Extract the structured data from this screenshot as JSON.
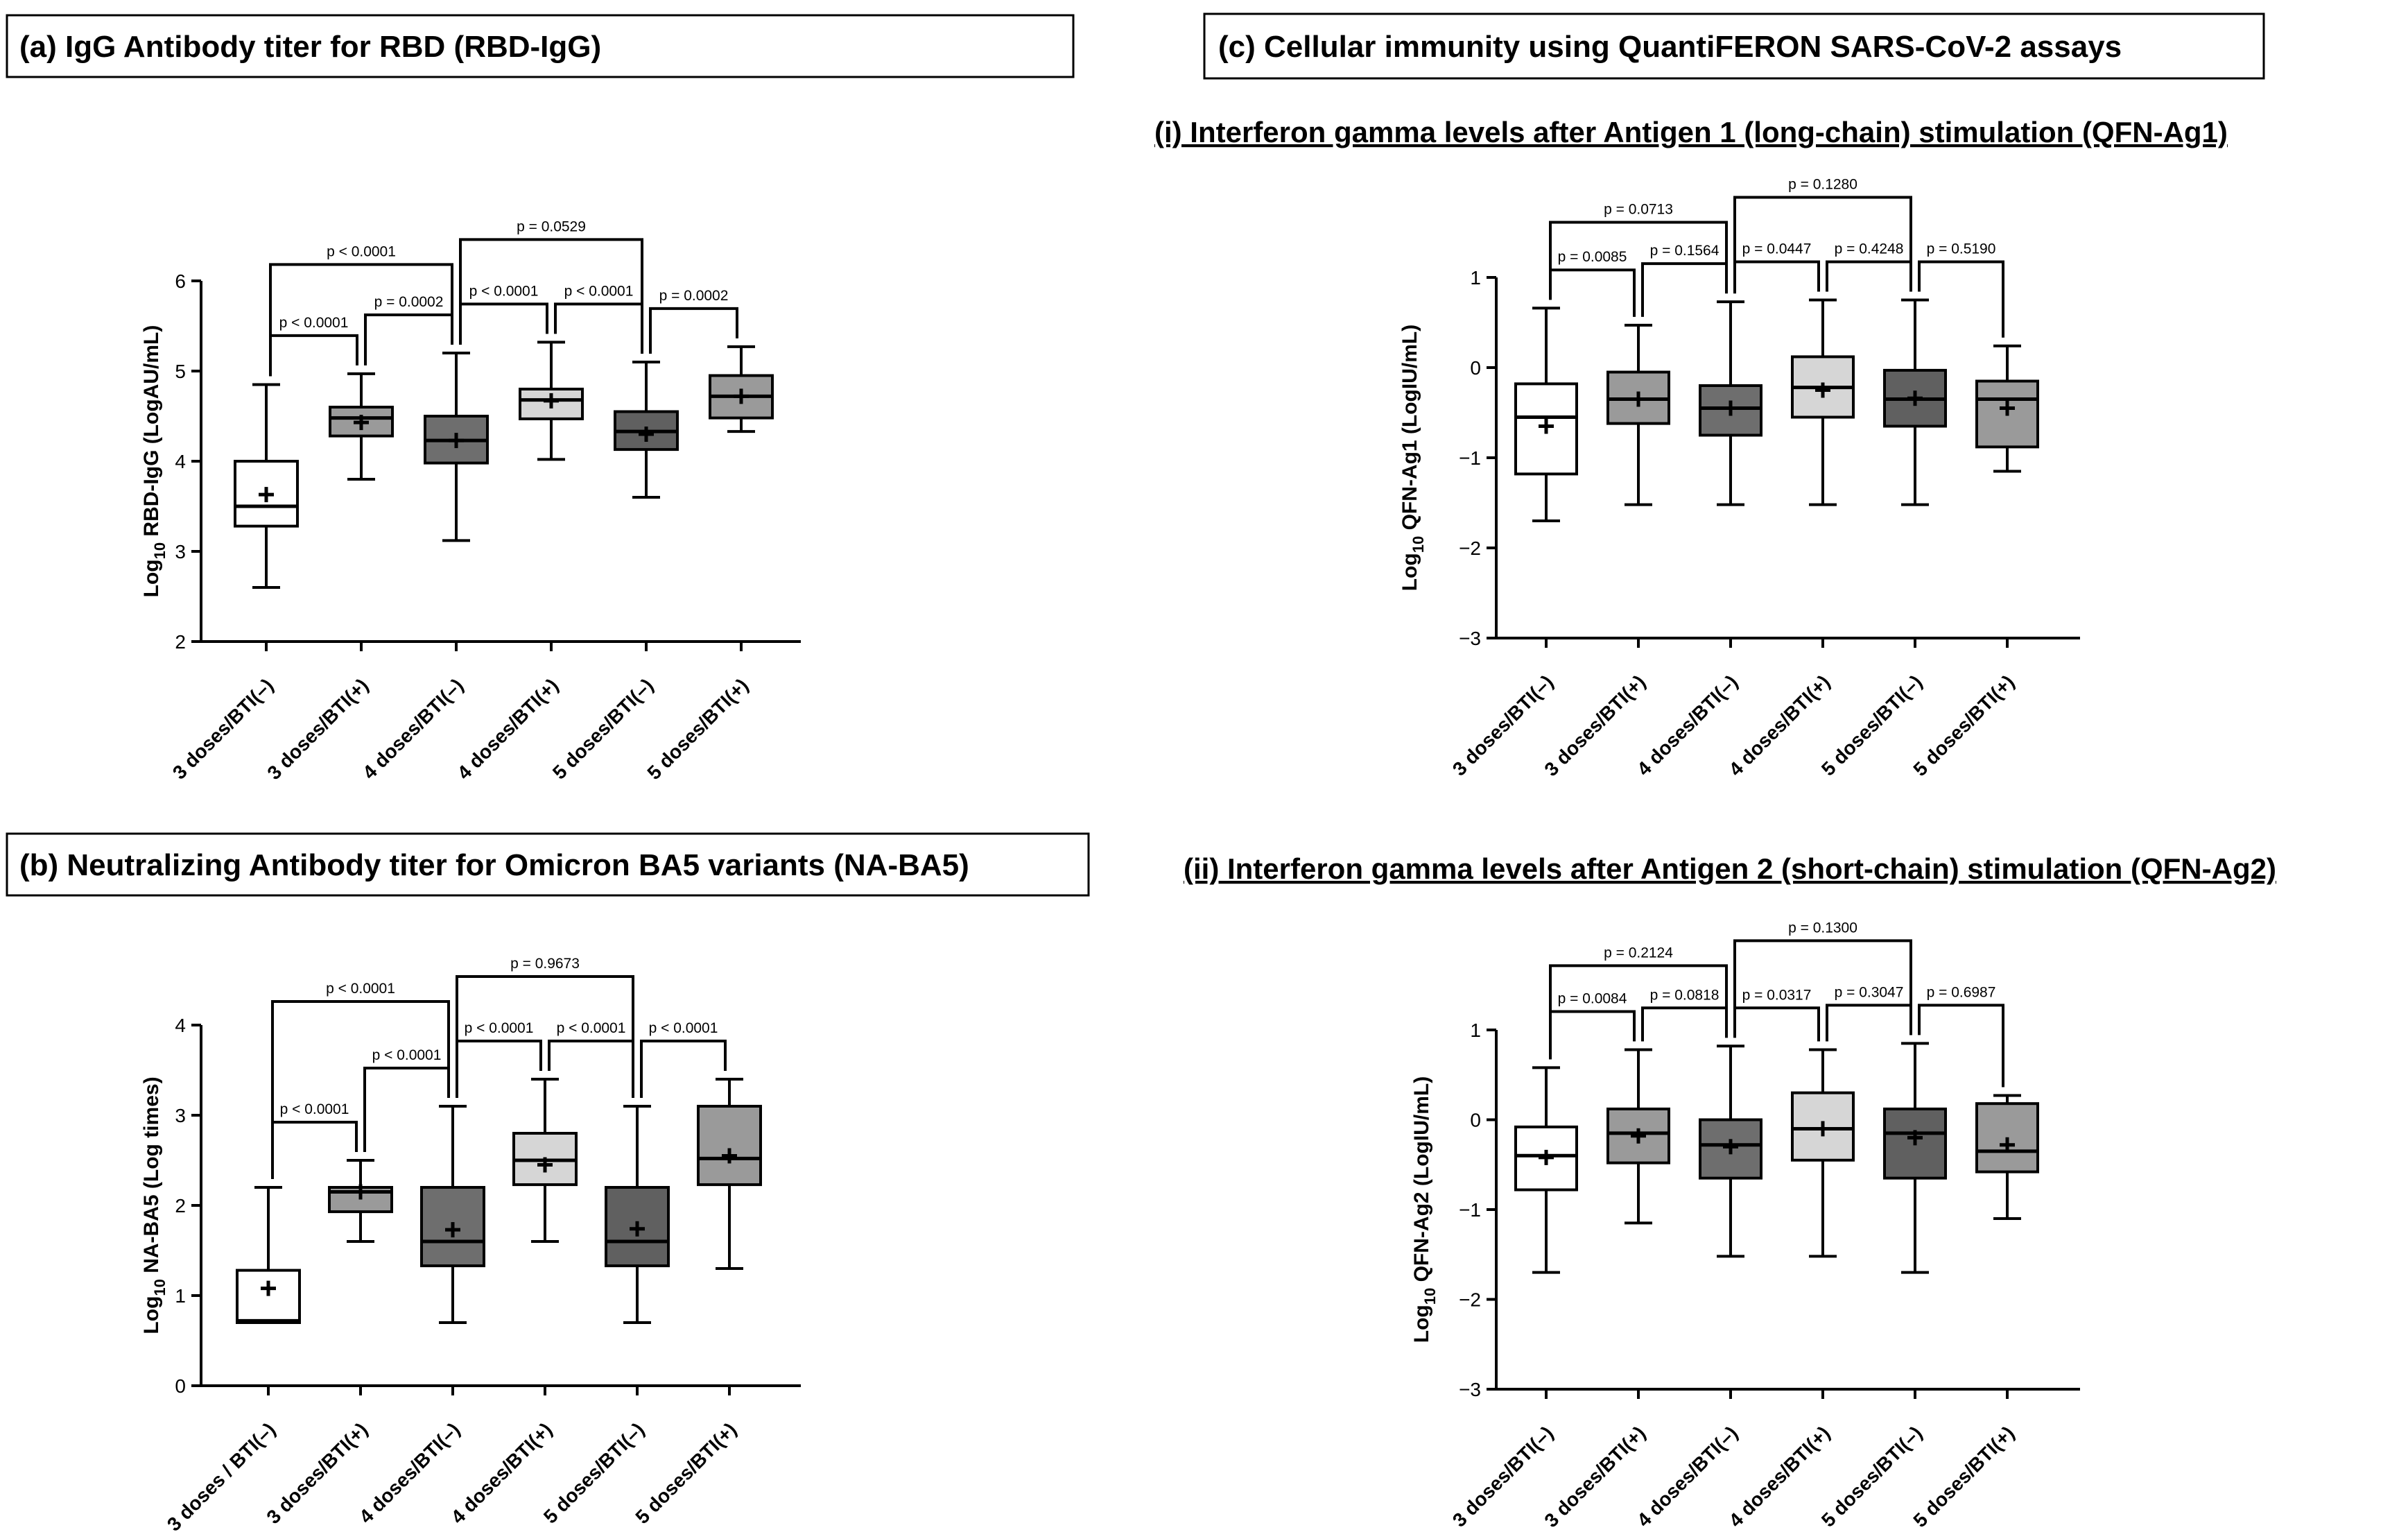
{
  "panel_titles": {
    "a": "(a) IgG Antibody titer for RBD (RBD-IgG)",
    "b": "(b) Neutralizing Antibody titer for Omicron BA5 variants (NA-BA5)",
    "c": "(c) Cellular immunity using QuantiFERON SARS-CoV-2 assays",
    "ci": "(i) Interferon gamma levels after Antigen 1 (long-chain) stimulation (QFN-Ag1)",
    "cii": "(ii) Interferon gamma levels after Antigen 2 (short-chain) stimulation (QFN-Ag2)"
  },
  "colors": {
    "white": "#ffffff",
    "gray_mid": "#9a9a9a",
    "gray_dark": "#6e6e6e",
    "gray_light": "#d6d6d6",
    "gray_darker": "#606060"
  },
  "chart_data": [
    {
      "id": "a",
      "type": "box",
      "title": "(a) IgG Antibody titer for RBD (RBD-IgG)",
      "ylabel_main": "Log",
      "ylabel_sub": "10",
      "ylabel_rest": " RBD-IgG  (LogAU/mL)",
      "ylim": [
        2,
        6
      ],
      "yticks": [
        "2",
        "3",
        "4",
        "5",
        "6"
      ],
      "categories": [
        "3 doses/BTI(–)",
        "3 doses/BTI(+)",
        "4 doses/BTI(–)",
        "4 doses/BTI(+)",
        "5 doses/BTI(–)",
        "5 doses/BTI(+)"
      ],
      "boxes": [
        {
          "min": 2.6,
          "q1": 3.28,
          "median": 3.5,
          "q3": 4.0,
          "max": 4.85,
          "mean": 3.63,
          "fill": "#ffffff"
        },
        {
          "min": 3.8,
          "q1": 4.28,
          "median": 4.48,
          "q3": 4.6,
          "max": 4.97,
          "mean": 4.43,
          "fill": "#9a9a9a"
        },
        {
          "min": 3.12,
          "q1": 3.98,
          "median": 4.23,
          "q3": 4.5,
          "max": 5.2,
          "mean": 4.23,
          "fill": "#6e6e6e"
        },
        {
          "min": 4.02,
          "q1": 4.47,
          "median": 4.68,
          "q3": 4.8,
          "max": 5.32,
          "mean": 4.67,
          "fill": "#d6d6d6"
        },
        {
          "min": 3.6,
          "q1": 4.13,
          "median": 4.33,
          "q3": 4.55,
          "max": 5.1,
          "mean": 4.3,
          "fill": "#606060"
        },
        {
          "min": 4.33,
          "q1": 4.48,
          "median": 4.72,
          "q3": 4.95,
          "max": 5.27,
          "mean": 4.72,
          "fill": "#9a9a9a"
        }
      ],
      "comparisons": [
        {
          "from": 0,
          "to": 1,
          "level": 1,
          "label": "p < 0.0001"
        },
        {
          "from": 1,
          "to": 2,
          "level": 1,
          "label": "p = 0.0002"
        },
        {
          "from": 0,
          "to": 2,
          "level": 2,
          "label": "p < 0.0001"
        },
        {
          "from": 2,
          "to": 3,
          "level": 1,
          "label": "p < 0.0001"
        },
        {
          "from": 3,
          "to": 4,
          "level": 1,
          "label": "p < 0.0001"
        },
        {
          "from": 2,
          "to": 4,
          "level": 3,
          "label": "p = 0.0529"
        },
        {
          "from": 4,
          "to": 5,
          "level": 1,
          "label": "p = 0.0002"
        }
      ]
    },
    {
      "id": "b",
      "type": "box",
      "title": "(b) Neutralizing Antibody titer for Omicron BA5 variants (NA-BA5)",
      "ylabel_main": "Log",
      "ylabel_sub": "10",
      "ylabel_rest": " NA-BA5  (Log times)",
      "ylim": [
        0,
        4
      ],
      "yticks": [
        "0",
        "1",
        "2",
        "3",
        "4"
      ],
      "categories": [
        "3 doses / BTI(–)",
        "3 doses/BTI(+)",
        "4 doses/BTI(–)",
        "4 doses/BTI(+)",
        "5 doses/BTI(–)",
        "5 doses/BTI(+)"
      ],
      "boxes": [
        {
          "min": 0.7,
          "q1": 0.7,
          "median": 0.72,
          "q3": 1.28,
          "max": 2.2,
          "mean": 1.08,
          "fill": "#ffffff"
        },
        {
          "min": 1.6,
          "q1": 1.93,
          "median": 2.15,
          "q3": 2.2,
          "max": 2.5,
          "mean": 2.15,
          "fill": "#9a9a9a"
        },
        {
          "min": 0.7,
          "q1": 1.33,
          "median": 1.6,
          "q3": 2.2,
          "max": 3.1,
          "mean": 1.73,
          "fill": "#6e6e6e"
        },
        {
          "min": 1.6,
          "q1": 2.23,
          "median": 2.5,
          "q3": 2.8,
          "max": 3.4,
          "mean": 2.45,
          "fill": "#d6d6d6"
        },
        {
          "min": 0.7,
          "q1": 1.33,
          "median": 1.6,
          "q3": 2.2,
          "max": 3.1,
          "mean": 1.74,
          "fill": "#606060"
        },
        {
          "min": 1.3,
          "q1": 2.23,
          "median": 2.52,
          "q3": 3.1,
          "max": 3.4,
          "mean": 2.55,
          "fill": "#9a9a9a"
        }
      ],
      "comparisons": [
        {
          "from": 0,
          "to": 1,
          "level": 1,
          "label": "p < 0.0001"
        },
        {
          "from": 1,
          "to": 2,
          "level": 1,
          "label": "p < 0.0001"
        },
        {
          "from": 0,
          "to": 2,
          "level": 2,
          "label": "p < 0.0001"
        },
        {
          "from": 2,
          "to": 3,
          "level": 1,
          "label": "p < 0.0001"
        },
        {
          "from": 3,
          "to": 4,
          "level": 1,
          "label": "p < 0.0001"
        },
        {
          "from": 2,
          "to": 4,
          "level": 3,
          "label": "p = 0.9673"
        },
        {
          "from": 4,
          "to": 5,
          "level": 1,
          "label": "p < 0.0001"
        }
      ]
    },
    {
      "id": "ci",
      "type": "box",
      "title": "(i) Interferon gamma levels after Antigen 1 (long-chain) stimulation (QFN-Ag1)",
      "ylabel_main": "Log",
      "ylabel_sub": "10",
      "ylabel_rest": " QFN-Ag1  (LogIU/mL)",
      "ylim": [
        -3,
        1
      ],
      "yticks": [
        "−3",
        "−2",
        "−1",
        "0",
        "1"
      ],
      "categories": [
        "3 doses/BTI(–)",
        "3 doses/BTI(+)",
        "4 doses/BTI(–)",
        "4 doses/BTI(+)",
        "5 doses/BTI(–)",
        "5 doses/BTI(+)"
      ],
      "boxes": [
        {
          "min": -1.7,
          "q1": -1.18,
          "median": -0.55,
          "q3": -0.18,
          "max": 0.66,
          "mean": -0.65,
          "fill": "#ffffff"
        },
        {
          "min": -1.52,
          "q1": -0.62,
          "median": -0.35,
          "q3": -0.05,
          "max": 0.47,
          "mean": -0.35,
          "fill": "#9a9a9a"
        },
        {
          "min": -1.52,
          "q1": -0.75,
          "median": -0.45,
          "q3": -0.2,
          "max": 0.73,
          "mean": -0.45,
          "fill": "#6e6e6e"
        },
        {
          "min": -1.52,
          "q1": -0.55,
          "median": -0.22,
          "q3": 0.12,
          "max": 0.75,
          "mean": -0.25,
          "fill": "#d6d6d6"
        },
        {
          "min": -1.52,
          "q1": -0.65,
          "median": -0.35,
          "q3": -0.03,
          "max": 0.75,
          "mean": -0.34,
          "fill": "#606060"
        },
        {
          "min": -1.15,
          "q1": -0.88,
          "median": -0.35,
          "q3": -0.15,
          "max": 0.24,
          "mean": -0.45,
          "fill": "#9a9a9a"
        }
      ],
      "comparisons": [
        {
          "from": 0,
          "to": 1,
          "level": 1,
          "label": "p = 0.0085"
        },
        {
          "from": 1,
          "to": 2,
          "level": 1,
          "label": "p = 0.1564"
        },
        {
          "from": 0,
          "to": 2,
          "level": 2,
          "label": "p = 0.0713"
        },
        {
          "from": 2,
          "to": 3,
          "level": 1,
          "label": "p = 0.0447"
        },
        {
          "from": 3,
          "to": 4,
          "level": 1,
          "label": "p = 0.4248"
        },
        {
          "from": 2,
          "to": 4,
          "level": 3,
          "label": "p = 0.1280"
        },
        {
          "from": 4,
          "to": 5,
          "level": 1,
          "label": "p = 0.5190"
        }
      ]
    },
    {
      "id": "cii",
      "type": "box",
      "title": "(ii) Interferon gamma levels after Antigen 2 (short-chain) stimulation (QFN-Ag2)",
      "ylabel_main": "Log",
      "ylabel_sub": "10",
      "ylabel_rest": " QFN-Ag2  (LogIU/mL)",
      "ylim": [
        -3,
        1
      ],
      "yticks": [
        "−3",
        "−2",
        "−1",
        "0",
        "1"
      ],
      "categories": [
        "3 doses/BTI(–)",
        "3 doses/BTI(+)",
        "4 doses/BTI(–)",
        "4 doses/BTI(+)",
        "5 doses/BTI(–)",
        "5 doses/BTI(+)"
      ],
      "boxes": [
        {
          "min": -1.7,
          "q1": -0.78,
          "median": -0.4,
          "q3": -0.08,
          "max": 0.58,
          "mean": -0.42,
          "fill": "#ffffff"
        },
        {
          "min": -1.15,
          "q1": -0.48,
          "median": -0.15,
          "q3": 0.12,
          "max": 0.78,
          "mean": -0.18,
          "fill": "#9a9a9a"
        },
        {
          "min": -1.52,
          "q1": -0.65,
          "median": -0.28,
          "q3": 0.0,
          "max": 0.82,
          "mean": -0.3,
          "fill": "#6e6e6e"
        },
        {
          "min": -1.52,
          "q1": -0.45,
          "median": -0.1,
          "q3": 0.3,
          "max": 0.78,
          "mean": -0.1,
          "fill": "#d6d6d6"
        },
        {
          "min": -1.7,
          "q1": -0.65,
          "median": -0.15,
          "q3": 0.12,
          "max": 0.85,
          "mean": -0.2,
          "fill": "#606060"
        },
        {
          "min": -1.1,
          "q1": -0.58,
          "median": -0.35,
          "q3": 0.18,
          "max": 0.27,
          "mean": -0.28,
          "fill": "#9a9a9a"
        }
      ],
      "comparisons": [
        {
          "from": 0,
          "to": 1,
          "level": 1,
          "label": "p = 0.0084"
        },
        {
          "from": 1,
          "to": 2,
          "level": 1,
          "label": "p = 0.0818"
        },
        {
          "from": 0,
          "to": 2,
          "level": 2,
          "label": "p = 0.2124"
        },
        {
          "from": 2,
          "to": 3,
          "level": 1,
          "label": "p = 0.0317"
        },
        {
          "from": 3,
          "to": 4,
          "level": 1,
          "label": "p = 0.3047"
        },
        {
          "from": 2,
          "to": 4,
          "level": 3,
          "label": "p = 0.1300"
        },
        {
          "from": 4,
          "to": 5,
          "level": 1,
          "label": "p = 0.6987"
        }
      ]
    }
  ]
}
